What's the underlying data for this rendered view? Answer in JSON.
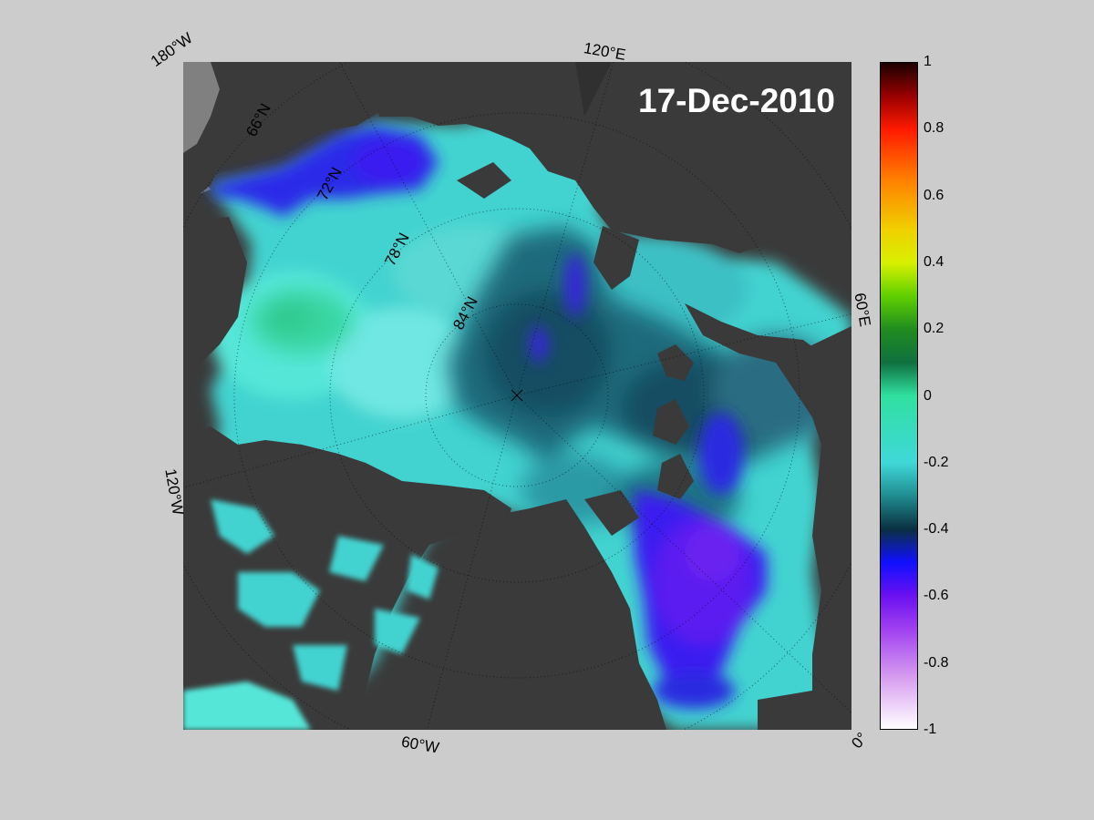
{
  "map": {
    "date": "17-Dec-2010",
    "lat_labels": [
      "66°N",
      "72°N",
      "78°N",
      "84°N"
    ],
    "lon_labels": {
      "top_left": "180°W",
      "top": "120°E",
      "right": "60°E",
      "left": "120°W",
      "bottom": "60°W",
      "bottom_right": "0°"
    },
    "colors": {
      "land": "#3a3a3a",
      "no_data": "#808080",
      "background": "#cccccc"
    }
  },
  "colorbar": {
    "min": -1,
    "max": 1,
    "ticks": [
      "1",
      "0.8",
      "0.6",
      "0.4",
      "0.2",
      "0",
      "-0.2",
      "-0.4",
      "-0.6",
      "-0.8",
      "-1"
    ],
    "stops": [
      {
        "value": 1.0,
        "color": "#1a0000"
      },
      {
        "value": 0.9,
        "color": "#990000"
      },
      {
        "value": 0.8,
        "color": "#ff1a00"
      },
      {
        "value": 0.65,
        "color": "#ff7f00"
      },
      {
        "value": 0.5,
        "color": "#f0d000"
      },
      {
        "value": 0.4,
        "color": "#d8f000"
      },
      {
        "value": 0.3,
        "color": "#60d000"
      },
      {
        "value": 0.2,
        "color": "#208c20"
      },
      {
        "value": 0.1,
        "color": "#107040"
      },
      {
        "value": 0.0,
        "color": "#30e0a0"
      },
      {
        "value": -0.2,
        "color": "#40d8d8"
      },
      {
        "value": -0.3,
        "color": "#208c90"
      },
      {
        "value": -0.4,
        "color": "#0a3040"
      },
      {
        "value": -0.5,
        "color": "#1010ff"
      },
      {
        "value": -0.6,
        "color": "#6a10f0"
      },
      {
        "value": -0.7,
        "color": "#a040f0"
      },
      {
        "value": -0.85,
        "color": "#d8a0f0"
      },
      {
        "value": -1.0,
        "color": "#ffffff"
      }
    ]
  }
}
